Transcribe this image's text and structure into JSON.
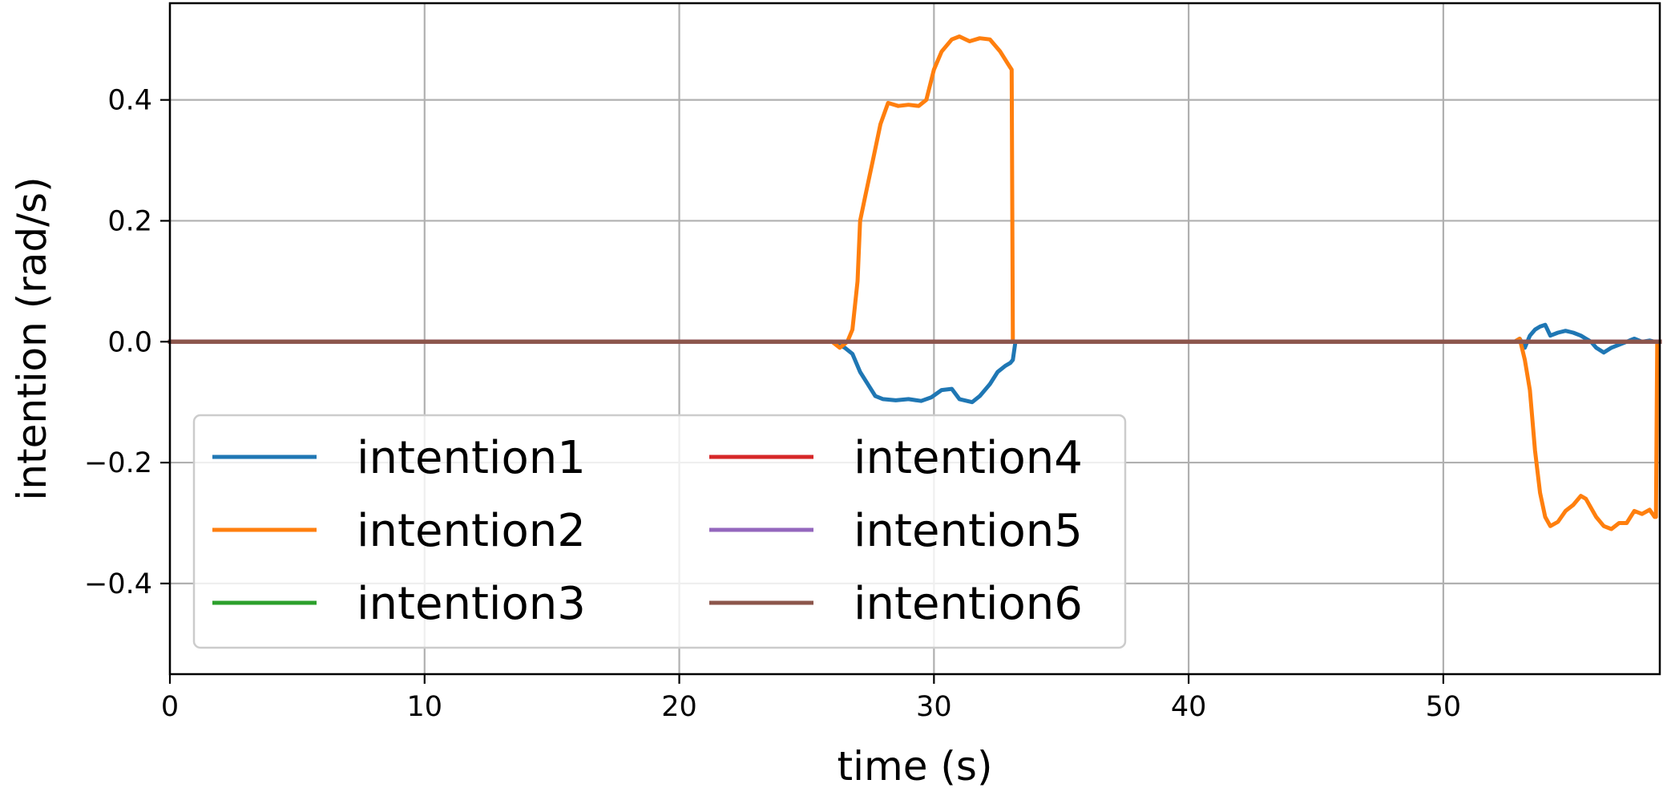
{
  "chart_data": {
    "type": "line",
    "title": "",
    "xlabel": "time (s)",
    "ylabel": "intention (rad/s)",
    "xlim": [
      0,
      58.5
    ],
    "ylim": [
      -0.55,
      0.56
    ],
    "xticks": [
      0,
      10,
      20,
      30,
      40,
      50
    ],
    "xtick_labels": [
      "0",
      "10",
      "20",
      "30",
      "40",
      "50"
    ],
    "yticks": [
      -0.4,
      -0.2,
      0.0,
      0.2,
      0.4
    ],
    "ytick_labels": [
      "−0.4",
      "−0.2",
      "0.0",
      "0.2",
      "0.4"
    ],
    "grid": true,
    "legend": {
      "placement": "lower-left",
      "columns": 2
    },
    "series": [
      {
        "name": "intention1",
        "color": "#1f77b4",
        "x": [
          0,
          26.0,
          26.5,
          26.8,
          27.1,
          27.4,
          27.7,
          28.0,
          28.5,
          29.0,
          29.5,
          29.9,
          30.3,
          30.7,
          31.0,
          31.5,
          31.8,
          32.2,
          32.5,
          32.8,
          33.0,
          33.1,
          33.2,
          52.8,
          53.0,
          53.2,
          53.4,
          53.6,
          53.8,
          54.0,
          54.2,
          54.5,
          54.8,
          55.1,
          55.4,
          55.6,
          55.8,
          56.0,
          56.3,
          56.6,
          56.9,
          57.2,
          57.5,
          57.8,
          58.1,
          58.3,
          58.5
        ],
        "y": [
          0,
          0,
          -0.01,
          -0.02,
          -0.05,
          -0.07,
          -0.09,
          -0.095,
          -0.097,
          -0.095,
          -0.098,
          -0.092,
          -0.08,
          -0.078,
          -0.095,
          -0.1,
          -0.09,
          -0.07,
          -0.05,
          -0.04,
          -0.035,
          -0.03,
          0,
          0,
          0.005,
          -0.01,
          0.01,
          0.02,
          0.025,
          0.028,
          0.01,
          0.015,
          0.018,
          0.015,
          0.01,
          0.005,
          0.0,
          -0.01,
          -0.018,
          -0.01,
          -0.005,
          0.0,
          0.005,
          0.0,
          0.002,
          0.0,
          0.0
        ]
      },
      {
        "name": "intention2",
        "color": "#ff7f0e",
        "x": [
          0,
          26.0,
          26.3,
          26.6,
          26.8,
          27.0,
          27.1,
          27.3,
          27.6,
          27.9,
          28.2,
          28.6,
          29.0,
          29.4,
          29.7,
          30.0,
          30.3,
          30.7,
          31.0,
          31.4,
          31.8,
          32.2,
          32.6,
          32.9,
          33.05,
          33.1,
          33.2,
          52.8,
          53.0,
          53.2,
          53.4,
          53.6,
          53.8,
          54.0,
          54.2,
          54.5,
          54.8,
          55.1,
          55.4,
          55.6,
          55.8,
          56.0,
          56.3,
          56.6,
          56.9,
          57.2,
          57.5,
          57.8,
          58.1,
          58.3,
          58.35,
          58.4,
          58.5
        ],
        "y": [
          0,
          0,
          -0.01,
          0.0,
          0.02,
          0.1,
          0.2,
          0.24,
          0.3,
          0.36,
          0.395,
          0.39,
          0.392,
          0.39,
          0.4,
          0.45,
          0.48,
          0.5,
          0.505,
          0.497,
          0.502,
          0.5,
          0.48,
          0.46,
          0.45,
          0.0,
          0.0,
          0.0,
          0.005,
          -0.03,
          -0.08,
          -0.18,
          -0.25,
          -0.29,
          -0.305,
          -0.298,
          -0.28,
          -0.27,
          -0.255,
          -0.26,
          -0.275,
          -0.29,
          -0.305,
          -0.31,
          -0.3,
          -0.3,
          -0.28,
          -0.285,
          -0.278,
          -0.29,
          -0.29,
          0.0,
          0.0
        ]
      },
      {
        "name": "intention3",
        "color": "#2ca02c",
        "x": [
          0,
          58.5
        ],
        "y": [
          0,
          0
        ]
      },
      {
        "name": "intention4",
        "color": "#d62728",
        "x": [
          0,
          58.5
        ],
        "y": [
          0,
          0
        ]
      },
      {
        "name": "intention5",
        "color": "#9467bd",
        "x": [
          0,
          58.5
        ],
        "y": [
          0,
          0
        ]
      },
      {
        "name": "intention6",
        "color": "#8c564b",
        "x": [
          0,
          58.5
        ],
        "y": [
          0,
          0
        ]
      }
    ]
  }
}
